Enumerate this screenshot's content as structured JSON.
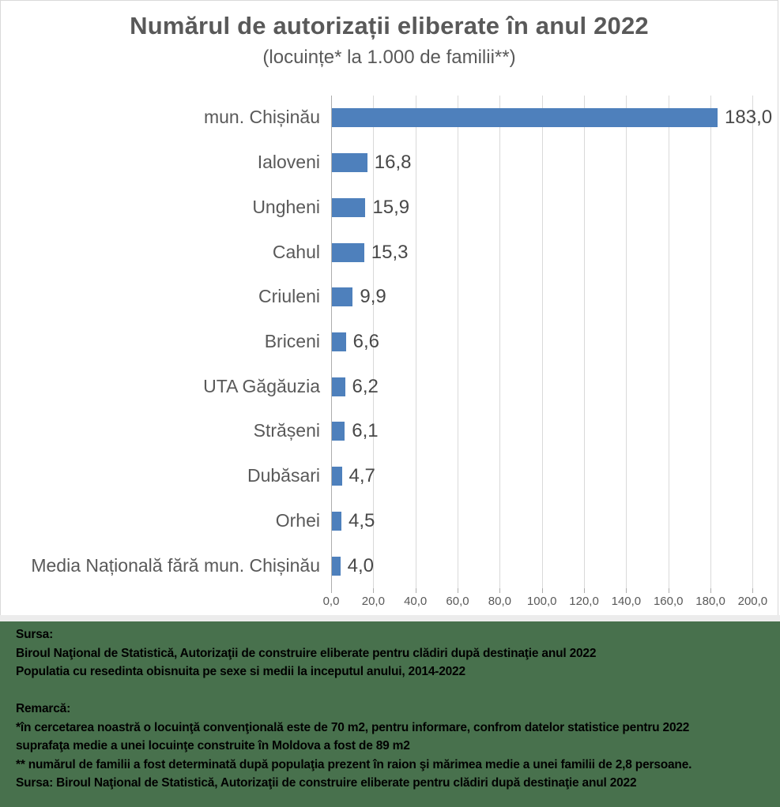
{
  "chart_data": {
    "type": "bar",
    "orientation": "horizontal",
    "title": "Numărul de autorizații eliberate în anul 2022",
    "subtitle": "(locuințe* la 1.000 de familii**)",
    "categories": [
      "mun. Chișinău",
      "Ialoveni",
      "Ungheni",
      "Cahul",
      "Criuleni",
      "Briceni",
      "UTA Găgăuzia",
      "Strășeni",
      "Dubăsari",
      "Orhei",
      "Media Națională fără mun. Chișinău"
    ],
    "values": [
      183.0,
      16.8,
      15.9,
      15.3,
      9.9,
      6.6,
      6.2,
      6.1,
      4.7,
      4.5,
      4.0
    ],
    "value_labels": [
      "183,0",
      "16,8",
      "15,9",
      "15,3",
      "9,9",
      "6,6",
      "6,2",
      "6,1",
      "4,7",
      "4,5",
      "4,0"
    ],
    "xlim": [
      0,
      200
    ],
    "x_ticks": [
      0,
      20,
      40,
      60,
      80,
      100,
      120,
      140,
      160,
      180,
      200
    ],
    "x_tick_labels": [
      "0,0",
      "20,0",
      "40,0",
      "60,0",
      "80,0",
      "100,0",
      "120,0",
      "140,0",
      "160,0",
      "180,0",
      "200,0"
    ],
    "grid": true,
    "legend": "none",
    "bar_color": "#4e80bc",
    "title_color": "#595959"
  },
  "footer": {
    "background_color": "#48714d",
    "text_color": "#000000",
    "lines": [
      "Sursa:",
      "Biroul Naţional de Statistică, Autorizaţii de construire eliberate pentru clădiri după destinaţie anul 2022",
      "Populatia cu resedinta obisnuita pe sexe si medii la inceputul anului, 2014-2022",
      "",
      "Remarcă:",
      "*în cercetarea noastră o locuinţă convenţională este de 70 m2, pentru informare, confrom datelor statistice pentru 2022",
      "suprafaţa medie a unei locuinţe construite în Moldova a fost de 89 m2",
      "** numărul de familii a fost determinată după populaţia prezent în raion şi mărimea medie a unei familii de 2,8 persoane.",
      "Sursa: Biroul Naţional de Statistică, Autorizaţii de construire eliberate pentru clădiri după destinaţie anul 2022"
    ]
  }
}
